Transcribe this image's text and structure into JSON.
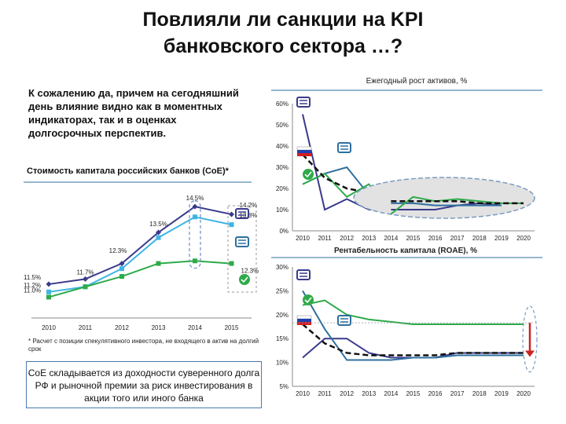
{
  "title": {
    "line1": "Повлияли ли санкции на KPI",
    "line2": "банковского сектора …?"
  },
  "intro_text": "К сожалению да, причем на сегодняшний день влияние видно как в моментных индикаторах, так и в оценках долгосрочных перспектив.",
  "footnote": "* Расчет с позиции спекулятивного инвестора, не входящего в актив на долгий срок",
  "callout": "CoE складывается из доходности суверенного долга РФ и рыночной премии за риск инвестирования в акции того или иного банка",
  "colors": {
    "navy": "#3a3a8c",
    "teal": "#2e6f9e",
    "lightblue": "#3fb4e4",
    "green": "#2eaa4a",
    "black": "#111111",
    "red": "#cc2222",
    "ellipse": "#7a9cc0"
  },
  "chart_data": [
    {
      "type": "line",
      "title": "Стоимость капитала российских банков (CoE)*",
      "categories": [
        "2010",
        "2011",
        "2012",
        "2013",
        "2014",
        "2015"
      ],
      "series": [
        {
          "values": [
            11.5,
            11.7,
            12.3,
            13.5,
            14.5,
            14.2
          ],
          "labels": [
            "11.5%",
            "11.7%",
            "",
            "13.5%",
            "14.5%",
            "14.2%"
          ],
          "color": "navy"
        },
        {
          "values": [
            11.2,
            11.4,
            12.1,
            13.3,
            14.1,
            13.8
          ],
          "labels": [
            "11.2%",
            "",
            "",
            "",
            "",
            "13.8%"
          ],
          "color": "lightblue"
        },
        {
          "values": [
            11.0,
            11.4,
            11.8,
            12.3,
            12.4,
            12.3
          ],
          "labels": [
            "11.0%",
            "",
            "",
            "12.3%",
            "",
            "12.3%"
          ],
          "color": "green"
        }
      ],
      "ylim": [
        10.8,
        15.2
      ]
    },
    {
      "type": "line",
      "title": "Ежегодный рост активов, %",
      "categories": [
        "2010",
        "2011",
        "2012",
        "2013",
        "2014",
        "2015",
        "2016",
        "2017",
        "2018",
        "2019",
        "2020"
      ],
      "yticks": [
        "0%",
        "10%",
        "20%",
        "30%",
        "40%",
        "50%",
        "60%"
      ],
      "ylim": [
        0,
        60
      ],
      "series": [
        {
          "values": [
            55,
            10,
            15,
            10,
            10,
            10,
            10,
            12,
            13,
            12,
            null
          ],
          "color": "navy"
        },
        {
          "values": [
            22,
            27,
            30,
            17,
            13,
            13,
            12,
            12,
            12,
            12,
            null
          ],
          "color": "teal"
        },
        {
          "values": [
            22,
            27,
            16,
            22,
            8,
            16,
            14,
            15,
            14,
            13,
            13
          ],
          "color": "green"
        },
        {
          "values": [
            36,
            25,
            20,
            18,
            14,
            14,
            14,
            14,
            13,
            13,
            13
          ],
          "color": "black",
          "dash": true
        }
      ]
    },
    {
      "type": "line",
      "title": "Рентабельность капитала (ROAE), %",
      "categories": [
        "2010",
        "2011",
        "2012",
        "2013",
        "2014",
        "2015",
        "2016",
        "2017",
        "2018",
        "2019",
        "2020"
      ],
      "yticks": [
        "5%",
        "10%",
        "15%",
        "20%",
        "25%",
        "30%"
      ],
      "ylim": [
        5,
        30
      ],
      "series": [
        {
          "values": [
            11,
            15,
            15,
            12,
            11,
            11,
            11,
            12,
            12,
            12,
            12
          ],
          "color": "navy"
        },
        {
          "values": [
            25,
            17,
            10.5,
            10.5,
            10.5,
            11,
            11,
            11.5,
            11.5,
            11.5,
            11.5
          ],
          "color": "teal"
        },
        {
          "values": [
            22,
            23,
            20,
            19,
            18.5,
            18,
            18,
            18,
            18,
            18,
            18
          ],
          "color": "green"
        },
        {
          "values": [
            18,
            14,
            12,
            11.5,
            11.5,
            11.5,
            11.5,
            12,
            12,
            12,
            12
          ],
          "color": "black",
          "dash": true
        }
      ]
    }
  ]
}
